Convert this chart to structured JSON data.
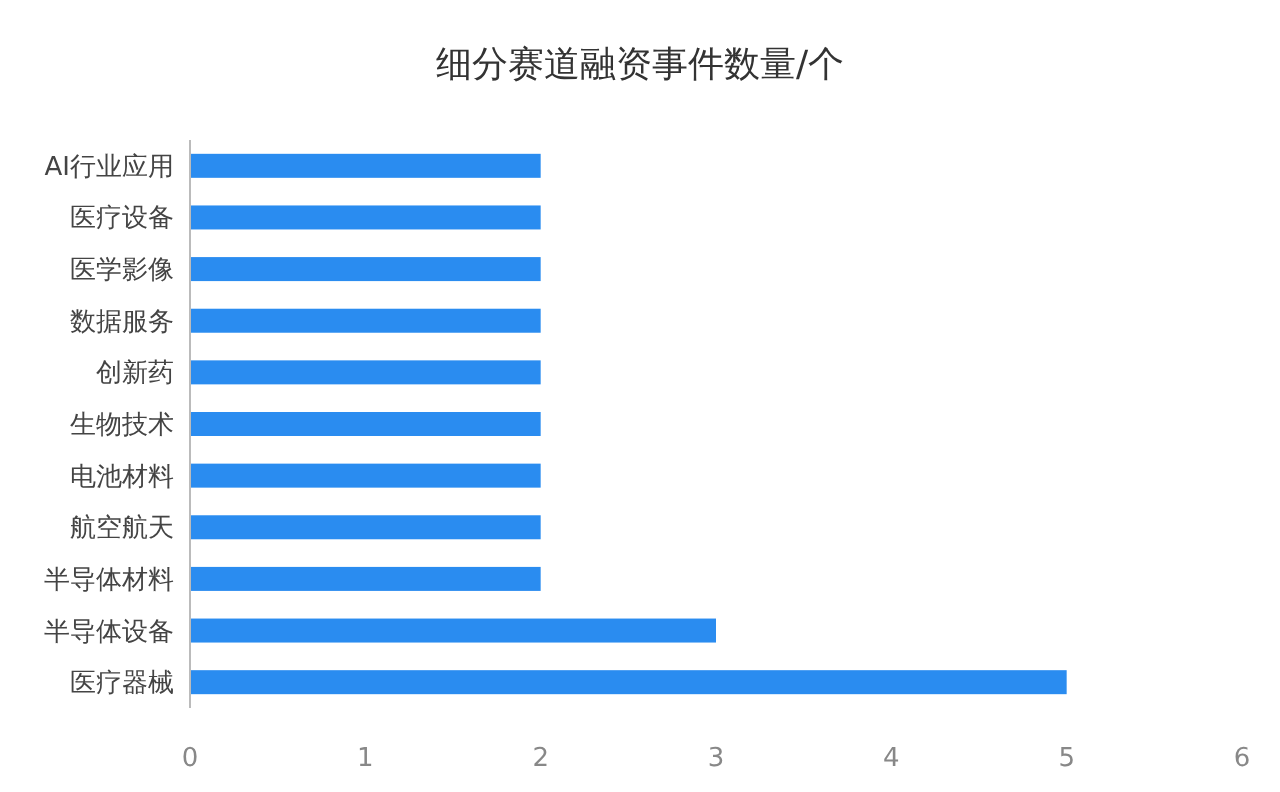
{
  "chart_data": {
    "type": "bar",
    "orientation": "horizontal",
    "title": "细分赛道融资事件数量/个",
    "categories": [
      "AI行业应用",
      "医疗设备",
      "医学影像",
      "数据服务",
      "创新药",
      "生物技术",
      "电池材料",
      "航空航天",
      "半导体材料",
      "半导体设备",
      "医疗器械"
    ],
    "values": [
      2,
      2,
      2,
      2,
      2,
      2,
      2,
      2,
      2,
      3,
      5
    ],
    "color": "#2a8cf0",
    "xlim": [
      0,
      6
    ],
    "xticks": [
      0,
      1,
      2,
      3,
      4,
      5,
      6
    ],
    "grid": false
  }
}
